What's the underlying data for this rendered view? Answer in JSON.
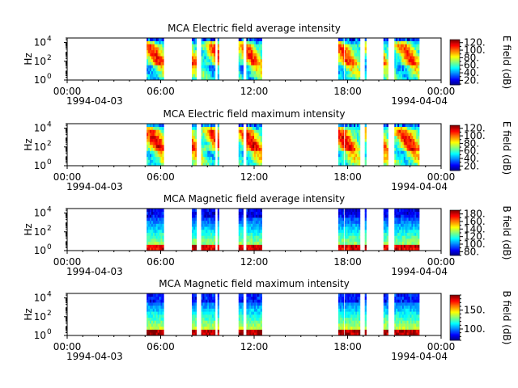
{
  "chart_data": {
    "type": "heatmap",
    "x_range": [
      "1994-04-03 00:00",
      "1994-04-04 00:00"
    ],
    "x_ticks": [
      "00:00",
      "06:00",
      "12:00",
      "18:00",
      "00:00"
    ],
    "x_date_labels": [
      "1994-04-03",
      "1994-04-04"
    ],
    "y_scale": "log",
    "ylim": [
      1,
      30000
    ],
    "y_ticks": [
      {
        "value": 1,
        "base": "10",
        "exp": "0"
      },
      {
        "value": 100,
        "base": "10",
        "exp": "2"
      },
      {
        "value": 10000,
        "base": "10",
        "exp": "4"
      }
    ],
    "ylabel": "Hz",
    "colormap": "jet",
    "data_intervals_hours": [
      [
        5.1,
        6.2
      ],
      [
        8.0,
        8.3
      ],
      [
        8.6,
        9.5
      ],
      [
        9.65,
        9.75
      ],
      [
        11.0,
        11.3
      ],
      [
        11.5,
        12.5
      ],
      [
        17.4,
        17.75
      ],
      [
        17.8,
        18.8
      ],
      [
        19.1,
        19.2
      ],
      [
        20.3,
        20.6
      ],
      [
        21.0,
        22.6
      ]
    ],
    "panels": [
      {
        "title": "MCA  Electric field average intensity",
        "colorbar_label": "E field (dB)",
        "clim": [
          8,
          128
        ],
        "cbar_ticks": [
          "20.",
          "40.",
          "60.",
          "80.",
          "100.",
          "120."
        ],
        "cbar_tick_values": [
          20,
          40,
          60,
          80,
          100,
          120
        ],
        "field": "E"
      },
      {
        "title": "MCA  Electric field maximum intensity",
        "colorbar_label": "E field (dB)",
        "clim": [
          8,
          128
        ],
        "cbar_ticks": [
          "20.",
          "40.",
          "60.",
          "80.",
          "100.",
          "120."
        ],
        "cbar_tick_values": [
          20,
          40,
          60,
          80,
          100,
          120
        ],
        "field": "E"
      },
      {
        "title": "MCA  Magnetic field average intensity",
        "colorbar_label": "B field (dB)",
        "clim": [
          70,
          190
        ],
        "cbar_ticks": [
          "80.",
          "100.",
          "120.",
          "140.",
          "160.",
          "180."
        ],
        "cbar_tick_values": [
          80,
          100,
          120,
          140,
          160,
          180
        ],
        "field": "B"
      },
      {
        "title": "MCA  Magnetic field maximum intensity",
        "colorbar_label": "B field (dB)",
        "clim": [
          70,
          190
        ],
        "cbar_ticks": [
          "100.",
          "150."
        ],
        "cbar_tick_values": [
          100,
          150
        ],
        "field": "B"
      }
    ]
  }
}
